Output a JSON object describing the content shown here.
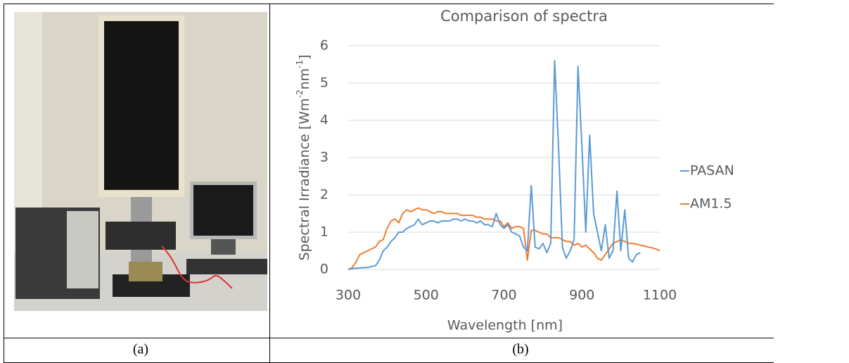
{
  "captions": [
    "(a)",
    "(b)"
  ],
  "chart_data": {
    "type": "line",
    "title": "Comparison of spectra",
    "x_label": "Wavelength [nm]",
    "y_label_parts": [
      "Spectral Irradiance [Wm",
      "-2",
      "nm",
      "-1",
      "]"
    ],
    "xlim": [
      300,
      1100
    ],
    "xticks": [
      300,
      500,
      700,
      900,
      1100
    ],
    "ylim": [
      0,
      6
    ],
    "yticks": [
      0,
      1,
      2,
      3,
      4,
      5,
      6
    ],
    "grid": true,
    "legend": "right",
    "x": [
      300,
      310,
      320,
      330,
      340,
      350,
      360,
      370,
      380,
      390,
      400,
      410,
      420,
      430,
      440,
      450,
      460,
      470,
      480,
      490,
      500,
      510,
      520,
      530,
      540,
      550,
      560,
      570,
      580,
      590,
      600,
      610,
      620,
      630,
      640,
      650,
      660,
      670,
      680,
      690,
      700,
      710,
      720,
      730,
      740,
      750,
      760,
      770,
      780,
      790,
      800,
      810,
      820,
      830,
      840,
      850,
      860,
      870,
      880,
      890,
      900,
      910,
      920,
      930,
      940,
      950,
      960,
      970,
      980,
      990,
      1000,
      1010,
      1020,
      1030,
      1040,
      1050,
      1060,
      1070,
      1080,
      1090,
      1100
    ],
    "series": [
      {
        "name": "PASAN",
        "color": "#5b9bd5",
        "values": [
          0,
          0.02,
          0.03,
          0.04,
          0.05,
          0.05,
          0.08,
          0.1,
          0.25,
          0.5,
          0.6,
          0.75,
          0.85,
          1.0,
          1.0,
          1.1,
          1.15,
          1.2,
          1.35,
          1.2,
          1.25,
          1.3,
          1.3,
          1.25,
          1.3,
          1.3,
          1.3,
          1.35,
          1.35,
          1.3,
          1.35,
          1.3,
          1.3,
          1.25,
          1.3,
          1.2,
          1.2,
          1.15,
          1.5,
          1.2,
          1.1,
          1.2,
          1.0,
          0.95,
          0.9,
          0.6,
          0.5,
          2.25,
          0.6,
          0.55,
          0.7,
          0.45,
          0.7,
          5.6,
          3.3,
          0.6,
          0.3,
          0.5,
          0.8,
          5.45,
          3.3,
          1.0,
          3.6,
          1.5,
          1.0,
          0.5,
          1.2,
          0.3,
          0.5,
          2.1,
          0.5,
          1.6,
          0.3,
          0.2,
          0.4,
          0.45,
          null,
          null,
          null,
          null,
          null
        ]
      },
      {
        "name": "AM1.5",
        "color": "#ed7d31",
        "values": [
          0,
          0.05,
          0.2,
          0.4,
          0.45,
          0.5,
          0.55,
          0.6,
          0.75,
          0.8,
          1.1,
          1.3,
          1.35,
          1.25,
          1.5,
          1.6,
          1.55,
          1.6,
          1.65,
          1.6,
          1.6,
          1.55,
          1.5,
          1.55,
          1.55,
          1.5,
          1.5,
          1.5,
          1.5,
          1.45,
          1.45,
          1.45,
          1.45,
          1.4,
          1.4,
          1.35,
          1.35,
          1.35,
          1.3,
          1.3,
          1.15,
          1.25,
          1.1,
          1.15,
          1.15,
          1.1,
          0.25,
          1.05,
          1.05,
          1.0,
          0.95,
          0.95,
          0.85,
          0.85,
          0.85,
          0.8,
          0.75,
          0.75,
          0.65,
          0.7,
          0.6,
          0.65,
          0.55,
          0.45,
          0.3,
          0.25,
          0.4,
          0.55,
          0.7,
          0.75,
          0.8,
          0.75,
          0.7,
          0.7,
          0.68,
          0.65,
          0.63,
          0.6,
          0.58,
          0.55,
          0.5
        ]
      }
    ]
  }
}
